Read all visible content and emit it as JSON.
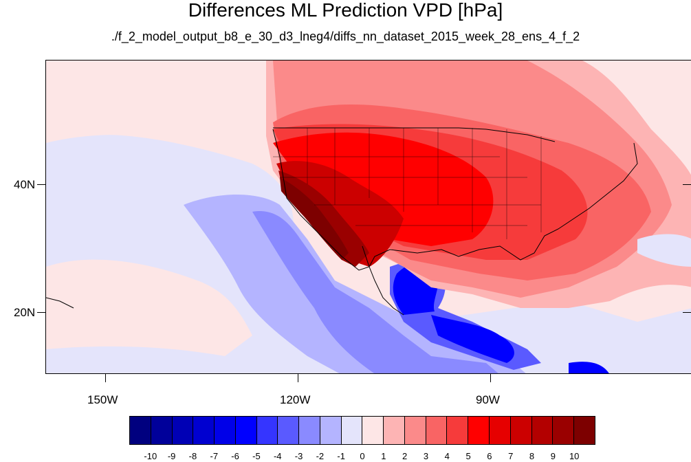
{
  "title": "Differences ML Prediction VPD [hPa]",
  "subtitle": "./f_2_model_output_b8_e_30_d3_lneg4/diffs_nn_dataset_2015_week_28_ens_4_f_2",
  "lat_labels": [
    "40N",
    "20N"
  ],
  "lon_labels": [
    "150W",
    "120W",
    "90W"
  ],
  "colorbar": {
    "labels": [
      "-10",
      "-9",
      "-8",
      "-7",
      "-6",
      "-5",
      "-4",
      "-3",
      "-2",
      "-1",
      "0",
      "1",
      "2",
      "3",
      "4",
      "5",
      "6",
      "7",
      "8",
      "9",
      "10"
    ],
    "colors": [
      "#00007f",
      "#00009a",
      "#0000b5",
      "#0000d0",
      "#0000e8",
      "#0000ff",
      "#3535ff",
      "#5a5aff",
      "#8a8aff",
      "#b4b4ff",
      "#e4e4fb",
      "#fde6e6",
      "#fdb4b4",
      "#fb8a8a",
      "#f96464",
      "#f63b3b",
      "#ff0000",
      "#e60000",
      "#cc0000",
      "#b30000",
      "#9a0000",
      "#7d0000"
    ]
  },
  "map_colors": {
    "ocean_base": "#fde6e6",
    "light_blue": "#e4e4fb",
    "blue_1": "#b4b4ff",
    "blue_2": "#8a8aff",
    "blue_3": "#5a5aff",
    "blue_4": "#0000ff",
    "red_1": "#fdb4b4",
    "red_2": "#fb8a8a",
    "red_3": "#f96464",
    "red_4": "#f63b3b",
    "red_5": "#ff0000",
    "red_6": "#cc0000",
    "red_7": "#9a0000",
    "red_8": "#7d0000"
  }
}
